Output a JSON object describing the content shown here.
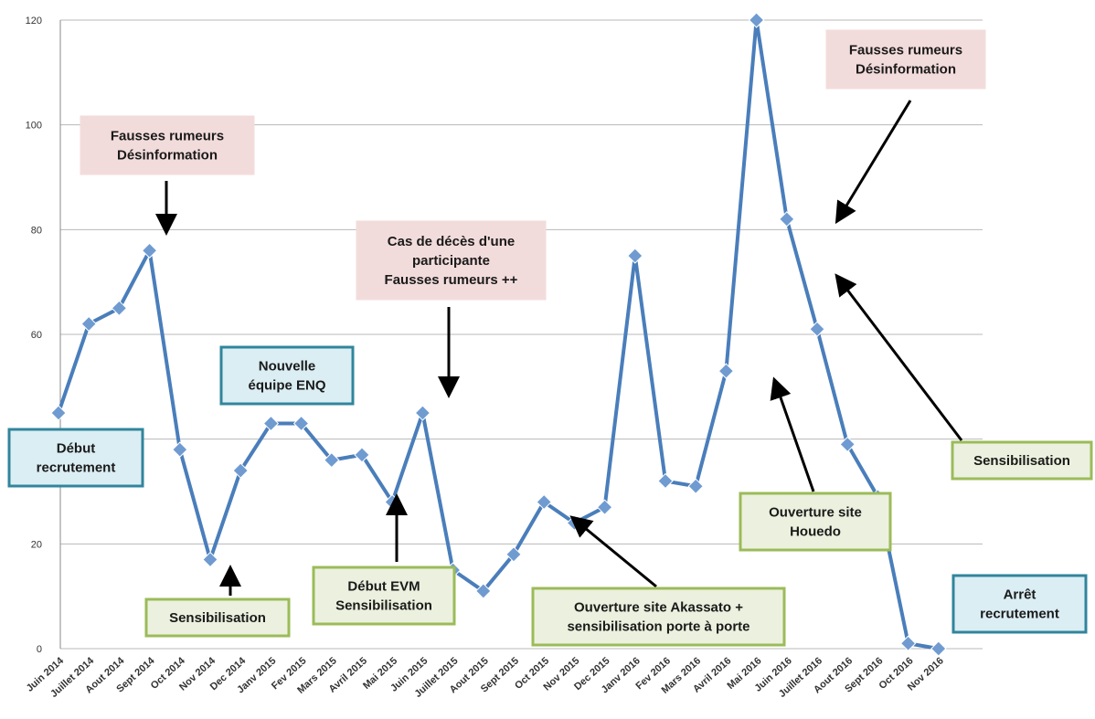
{
  "chart_data": {
    "type": "line",
    "categories": [
      "Juin 2014",
      "Juillet 2014",
      "Aout 2014",
      "Sept 2014",
      "Oct 2014",
      "Nov 2014",
      "Dec 2014",
      "Janv 2015",
      "Fev 2015",
      "Mars 2015",
      "Avril 2015",
      "Mai 2015",
      "Juin 2015",
      "Juillet 2015",
      "Aout 2015",
      "Sept 2015",
      "Oct 2015",
      "Nov 2015",
      "Dec 2015",
      "Janv 2016",
      "Fev 2016",
      "Mars 2016",
      "Avril 2016",
      "Mai 2016",
      "Juin 2016",
      "Juillet 2016",
      "Aout 2016",
      "Sept 2016",
      "Oct 2016",
      "Nov 2016"
    ],
    "series": [
      {
        "values": [
          45,
          62,
          65,
          76,
          38,
          17,
          34,
          43,
          43,
          36,
          37,
          28,
          45,
          15,
          11,
          18,
          28,
          24,
          27,
          75,
          32,
          31,
          53,
          120,
          82,
          61,
          39,
          29,
          1,
          0
        ]
      }
    ],
    "ylim": [
      0,
      120
    ],
    "yticks": [
      "0",
      "20",
      "40",
      "60",
      "80",
      "100",
      "120"
    ],
    "grid": true,
    "line_color": "#4a7ebb",
    "marker_color": "#6f9bd1",
    "annotations": [
      {
        "lines": [
          "Fausses rumeurs",
          "Désinformation"
        ],
        "style": "red",
        "target_index": 3
      },
      {
        "lines": [
          "Nouvelle",
          "équipe ENQ"
        ],
        "style": "blue"
      },
      {
        "lines": [
          "Cas de décès d'une",
          "participante",
          "Fausses rumeurs ++"
        ],
        "style": "red",
        "target_index": 12
      },
      {
        "lines": [
          "Fausses rumeurs",
          "Désinformation"
        ],
        "style": "red",
        "target_index": 24
      },
      {
        "lines": [
          "Début",
          "recrutement"
        ],
        "style": "blue"
      },
      {
        "lines": [
          "Sensibilisation"
        ],
        "style": "green",
        "target_index": 5
      },
      {
        "lines": [
          "Début EVM",
          "Sensibilisation"
        ],
        "style": "green",
        "target_index": 10
      },
      {
        "lines": [
          "Ouverture site Akassato +",
          "sensibilisation porte à porte"
        ],
        "style": "green",
        "target_index": 16
      },
      {
        "lines": [
          "Ouverture site",
          "Houedo"
        ],
        "style": "green",
        "target_index": 22
      },
      {
        "lines": [
          "Sensibilisation"
        ],
        "style": "green",
        "target_index": 25
      },
      {
        "lines": [
          "Arrêt",
          "recrutement"
        ],
        "style": "blue"
      }
    ],
    "annotation_styles": {
      "red": {
        "fill": "#f2dcdb",
        "stroke": "#f2dcdb"
      },
      "blue": {
        "fill": "#dbeef4",
        "stroke": "#31859c"
      },
      "green": {
        "fill": "#ebf1de",
        "stroke": "#9bbb59"
      }
    }
  }
}
